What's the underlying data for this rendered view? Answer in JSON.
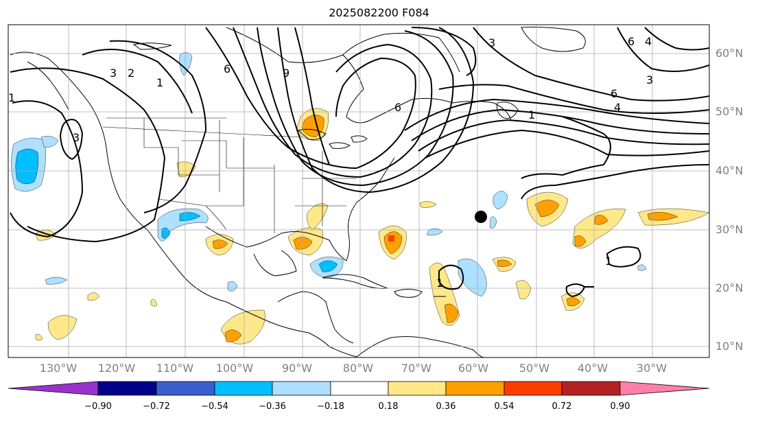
{
  "title": "2025082200 F084",
  "lon_labels": [
    "130°W",
    "120°W",
    "110°W",
    "100°W",
    "90°W",
    "80°W",
    "70°W",
    "60°W",
    "50°W",
    "40°W",
    "30°W"
  ],
  "lat_labels": [
    "60°N",
    "50°N",
    "40°N",
    "30°N",
    "20°N",
    "10°N"
  ],
  "colorbar": {
    "ticks": [
      "−0.90",
      "−0.72",
      "−0.54",
      "−0.36",
      "−0.18",
      "0.18",
      "0.36",
      "0.54",
      "0.72",
      "0.90"
    ],
    "colors": [
      "#9932cc",
      "#00008b",
      "#3a5fcd",
      "#00bfff",
      "#aee0ff",
      "#ffffff",
      "#ffe88a",
      "#ffa000",
      "#ff3c00",
      "#b22222",
      "#ff80aa"
    ]
  },
  "contour_labels": [
    "3",
    "2",
    "1",
    "3",
    "6",
    "9",
    "6",
    "1",
    "6",
    "4",
    "1",
    "1",
    "1",
    "3",
    "3",
    "6",
    "4"
  ],
  "marker": {
    "name": "point-marker",
    "lon": -59.5,
    "lat": 32.2
  }
}
